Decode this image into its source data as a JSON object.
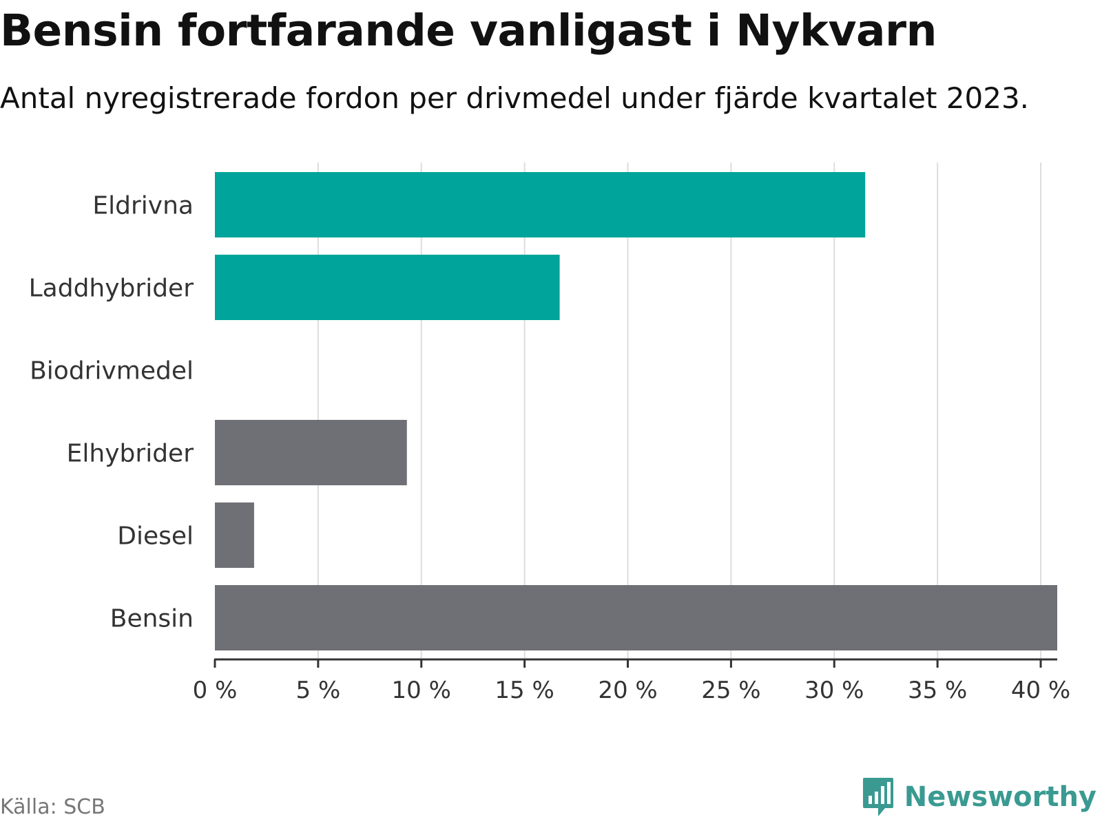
{
  "header": {
    "title": "Bensin fortfarande vanligast i Nykvarn",
    "subtitle": "Antal nyregistrerade fordon per drivmedel under fjärde kvartalet 2023."
  },
  "footer": {
    "source": "Källa: SCB",
    "brand": "Newsworthy"
  },
  "colors": {
    "highlight": "#00a49a",
    "neutral": "#6f6f76",
    "grid": "#dddddd",
    "axis": "#333333",
    "brand": "#3a9a91"
  },
  "chart_data": {
    "type": "bar",
    "orientation": "horizontal",
    "title": "Bensin fortfarande vanligast i Nykvarn",
    "subtitle": "Antal nyregistrerade fordon per drivmedel under fjärde kvartalet 2023.",
    "xlabel": "",
    "ylabel": "",
    "xlim": [
      0,
      40.8
    ],
    "grid": true,
    "ticks": [
      0,
      5,
      10,
      15,
      20,
      25,
      30,
      35,
      40
    ],
    "tick_labels": [
      "0 %",
      "5 %",
      "10 %",
      "15 %",
      "20 %",
      "25 %",
      "30 %",
      "35 %",
      "40 %"
    ],
    "categories": [
      "Eldrivna",
      "Laddhybrider",
      "Biodrivmedel",
      "Elhybrider",
      "Diesel",
      "Bensin"
    ],
    "values": [
      31.5,
      16.7,
      0,
      9.3,
      1.9,
      40.8
    ],
    "highlight": [
      true,
      true,
      true,
      false,
      false,
      false
    ]
  }
}
